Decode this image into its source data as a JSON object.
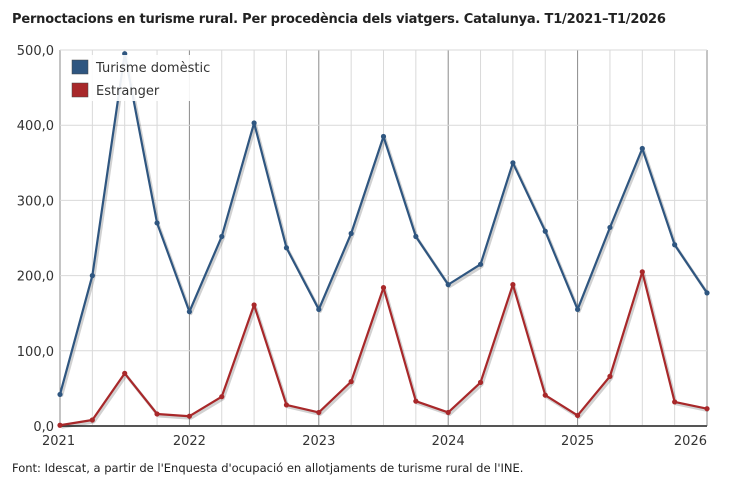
{
  "title": "Pernoctacions en turisme rural. Per procedència dels viatgers. Catalunya. T1/2021–T1/2026",
  "source": "Font: Idescat, a partir de l'Enquesta d'ocupació en allotjaments de turisme rural de l'INE.",
  "colors": {
    "domestic": "#2f5680",
    "foreign": "#a8282a",
    "grid": "#d9d9d9",
    "year_line": "#8a8a8a"
  },
  "chart_data": {
    "type": "line",
    "title": "Pernoctacions en turisme rural. Per procedència dels viatgers. Catalunya. T1/2021–T1/2026",
    "xlabel": "",
    "ylabel": "",
    "ylim": [
      0,
      500
    ],
    "yticks": [
      "0,0",
      "100,0",
      "200,0",
      "300,0",
      "400,0",
      "500,0"
    ],
    "xticks": [
      "2021",
      "2022",
      "2023",
      "2024",
      "2025",
      "2026"
    ],
    "categories": [
      "T1/2021",
      "T2/2021",
      "T3/2021",
      "T4/2021",
      "T1/2022",
      "T2/2022",
      "T3/2022",
      "T4/2022",
      "T1/2023",
      "T2/2023",
      "T3/2023",
      "T4/2023",
      "T1/2024",
      "T2/2024",
      "T3/2024",
      "T4/2024",
      "T1/2025",
      "T2/2025",
      "T3/2025",
      "T4/2025",
      "T1/2026"
    ],
    "legend_position": "top-left",
    "grid": true,
    "series": [
      {
        "name": "Turisme domèstic",
        "color": "#2f5680",
        "values": [
          42,
          200,
          495,
          270,
          152,
          252,
          403,
          237,
          155,
          256,
          385,
          252,
          188,
          215,
          350,
          259,
          155,
          264,
          369,
          241,
          177
        ]
      },
      {
        "name": "Estranger",
        "color": "#a8282a",
        "values": [
          1,
          8,
          70,
          16,
          13,
          39,
          161,
          28,
          18,
          59,
          184,
          33,
          18,
          58,
          188,
          41,
          14,
          66,
          205,
          32,
          23
        ]
      }
    ]
  }
}
